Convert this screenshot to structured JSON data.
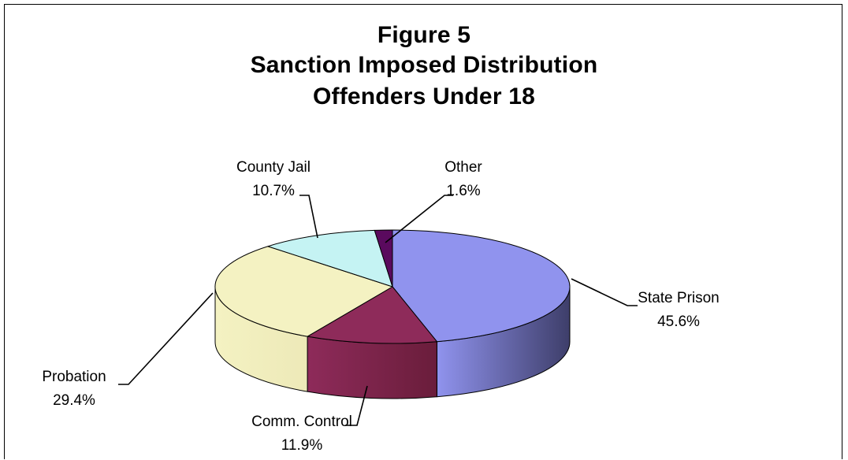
{
  "chart_data": {
    "type": "pie",
    "title_lines": [
      "Figure 5",
      "Sanction Imposed Distribution",
      "Offenders Under 18"
    ],
    "slices": [
      {
        "label": "State Prison",
        "value": 45.6,
        "value_text": "45.6%",
        "color": "#9093ee",
        "side_color": "#3e3e6a"
      },
      {
        "label": "Comm. Control",
        "value": 11.9,
        "value_text": "11.9%",
        "color": "#8e2b5a",
        "side_color": "#6a1d3b"
      },
      {
        "label": "Probation",
        "value": 29.4,
        "value_text": "29.4%",
        "color": "#f4f2c2",
        "side_color": "#ede9b8"
      },
      {
        "label": "County Jail",
        "value": 10.7,
        "value_text": "10.7%",
        "color": "#c5f3f3",
        "side_color": "#8fc2c2"
      },
      {
        "label": "Other",
        "value": 1.6,
        "value_text": "1.6%",
        "color": "#5a0a5e",
        "side_color": "#3a063d"
      }
    ],
    "legend": "none"
  }
}
